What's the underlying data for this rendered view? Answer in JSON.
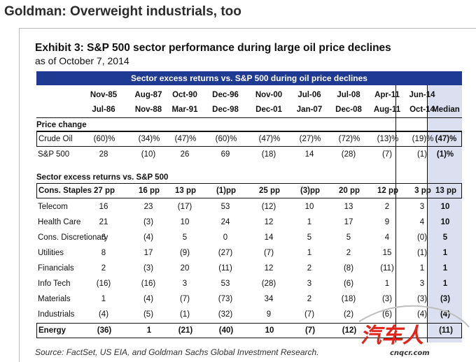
{
  "headline": "Goldman: Overweight industrials, too",
  "exhibit_title": "Exhibit 3: S&P 500 sector performance during large oil price declines",
  "as_of": "as of October 7, 2014",
  "banner": "Sector excess returns vs. S&P 500 during oil price declines",
  "periods": [
    {
      "start": "Nov-85",
      "end": "Jul-86"
    },
    {
      "start": "Aug-87",
      "end": "Nov-88"
    },
    {
      "start": "Oct-90",
      "end": "Mar-91"
    },
    {
      "start": "Dec-96",
      "end": "Dec-98"
    },
    {
      "start": "Nov-00",
      "end": "Dec-01"
    },
    {
      "start": "Jul-06",
      "end": "Jan-07"
    },
    {
      "start": "Jul-08",
      "end": "Dec-08"
    },
    {
      "start": "Apr-11",
      "end": "Aug-11"
    },
    {
      "start": "Jun-14",
      "end": "Oct-14"
    }
  ],
  "median_header": "Median",
  "price_change_label": "Price change",
  "sector_label": "Sector excess returns vs. S&P 500",
  "price_rows": [
    {
      "label": "Crude Oil",
      "values": [
        "(60)%",
        "(34)%",
        "(47)%",
        "(60)%",
        "(47)%",
        "(27)%",
        "(72)%",
        "(13)%",
        "(19)%"
      ],
      "median": "(47)%"
    },
    {
      "label": "S&P 500",
      "values": [
        "28",
        "(10)",
        "26",
        "69",
        "(18)",
        "14",
        "(28)",
        "(7)",
        "(1)"
      ],
      "median": "(1)%"
    }
  ],
  "sector_rows": [
    {
      "label": "Cons. Staples",
      "values": [
        "27 pp",
        "16 pp",
        "13 pp",
        "(1)pp",
        "25 pp",
        "(3)pp",
        "20 pp",
        "12 pp",
        "3 pp"
      ],
      "median": "13 pp"
    },
    {
      "label": "Telecom",
      "values": [
        "16",
        "23",
        "(17)",
        "53",
        "(12)",
        "10",
        "13",
        "2",
        "3"
      ],
      "median": "10"
    },
    {
      "label": "Health Care",
      "values": [
        "21",
        "(3)",
        "10",
        "24",
        "12",
        "1",
        "17",
        "9",
        "4"
      ],
      "median": "10"
    },
    {
      "label": "Cons. Discretionary",
      "values": [
        "6",
        "(4)",
        "5",
        "0",
        "14",
        "5",
        "5",
        "4",
        "(0)"
      ],
      "median": "5"
    },
    {
      "label": "Utilities",
      "values": [
        "8",
        "17",
        "(9)",
        "(27)",
        "(7)",
        "1",
        "2",
        "15",
        "(1)"
      ],
      "median": "1"
    },
    {
      "label": "Financials",
      "values": [
        "2",
        "(3)",
        "20",
        "(11)",
        "12",
        "2",
        "(8)",
        "(11)",
        "1"
      ],
      "median": "1"
    },
    {
      "label": "Info Tech",
      "values": [
        "(16)",
        "(16)",
        "3",
        "53",
        "(28)",
        "3",
        "(6)",
        "1",
        "3"
      ],
      "median": "1"
    },
    {
      "label": "Materials",
      "values": [
        "1",
        "(4)",
        "(7)",
        "(73)",
        "34",
        "2",
        "(18)",
        "(3)",
        "(3)"
      ],
      "median": "(3)"
    },
    {
      "label": "Industrials",
      "values": [
        "(4)",
        "(5)",
        "(1)",
        "(32)",
        "9",
        "(7)",
        "(2)",
        "(6)",
        "(4)"
      ],
      "median": "(4)"
    },
    {
      "label": "Energy",
      "values": [
        "(36)",
        "1",
        "(21)",
        "(40)",
        "10",
        "(7)",
        "(12)",
        "",
        ""
      ],
      "median": "(11)"
    }
  ],
  "source": "Source: FactSet, US EIA, and Goldman Sachs Global Investment Research.",
  "watermark": {
    "brand": "汽车人",
    "url": "cnqcr.com",
    "color": "#e2231a"
  }
}
